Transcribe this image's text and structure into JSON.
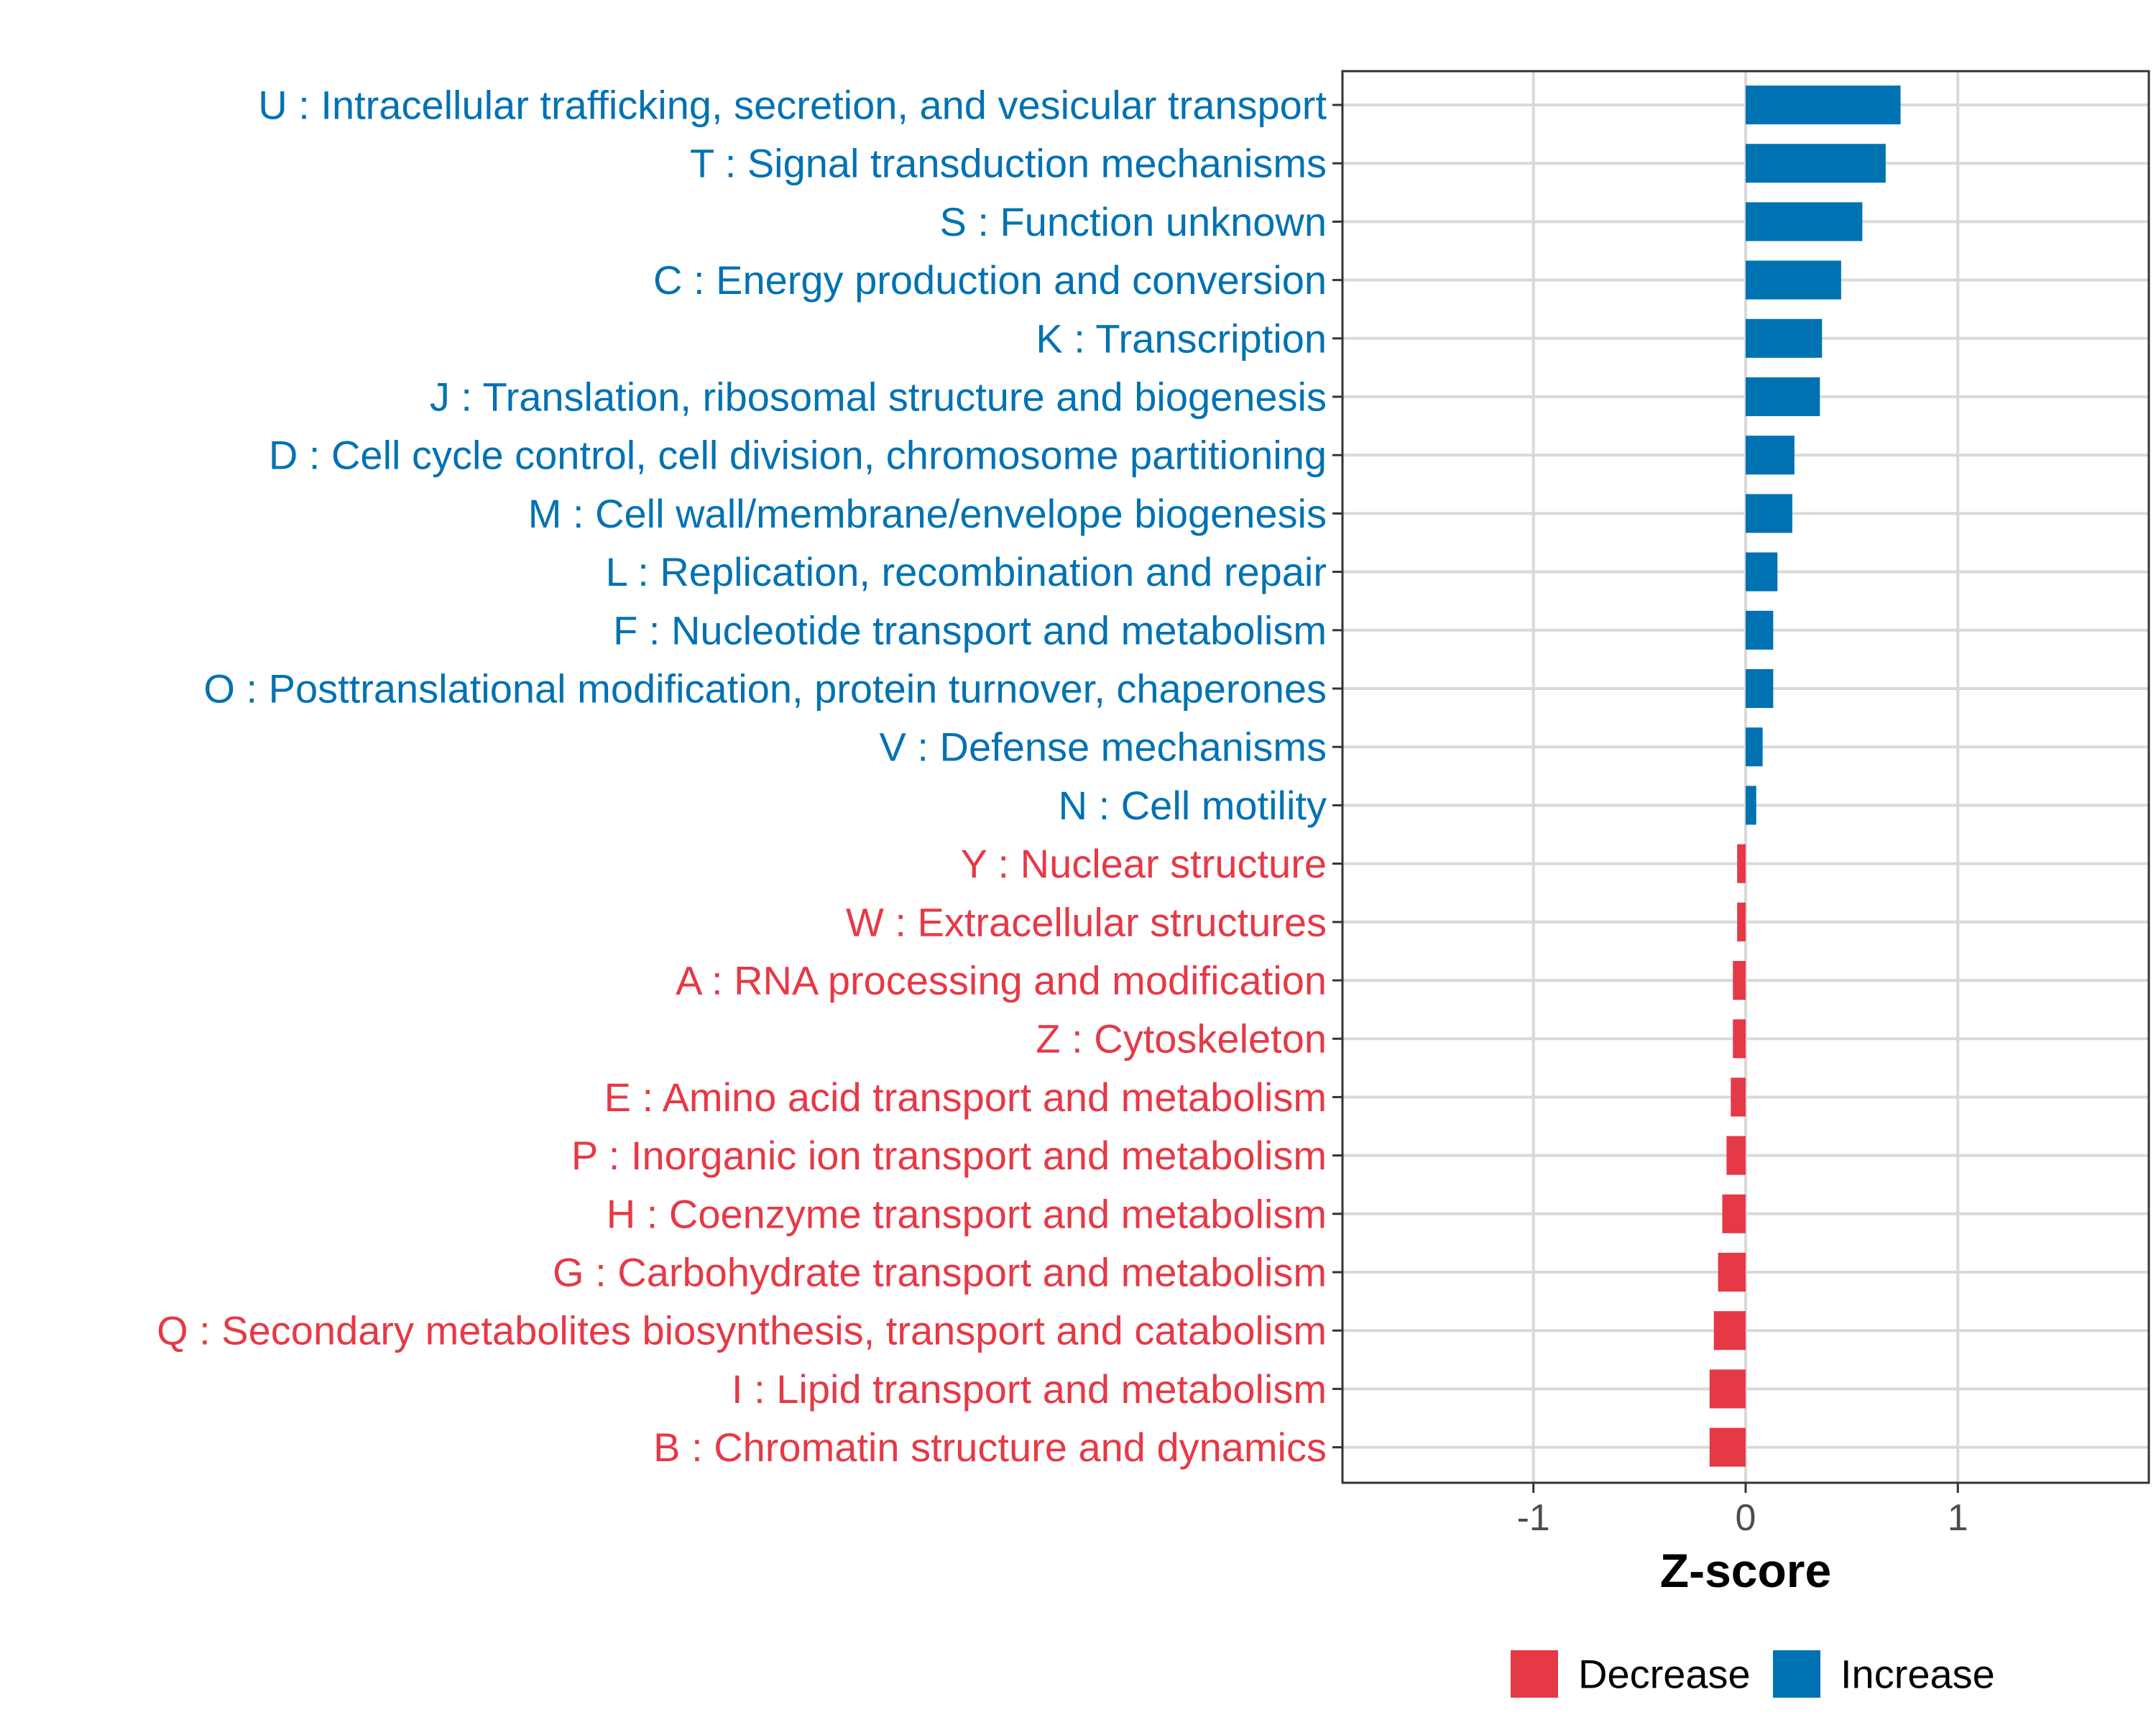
{
  "chart_data": {
    "type": "bar",
    "orientation": "horizontal",
    "title": "",
    "xlabel": "Z-score",
    "ylabel": "",
    "xlim": [
      -1.9,
      1.9
    ],
    "xticks": [
      -1,
      0,
      1
    ],
    "xtick_labels": [
      "-1",
      "0",
      "1"
    ],
    "grid": true,
    "legend_position": "bottom",
    "colors": {
      "Increase": "#0072b2",
      "Decrease": "#e63946",
      "grid": "#d9d9d9"
    },
    "legend": [
      {
        "label": "Decrease",
        "color": "#e63946"
      },
      {
        "label": "Increase",
        "color": "#0072b2"
      }
    ],
    "categories": [
      "U : Intracellular trafficking, secretion, and vesicular transport",
      "T : Signal transduction mechanisms",
      "S : Function unknown",
      "C : Energy production and conversion",
      "K : Transcription",
      "J : Translation, ribosomal structure and biogenesis",
      "D : Cell cycle control, cell division, chromosome partitioning",
      "M : Cell wall/membrane/envelope biogenesis",
      "L : Replication, recombination and repair",
      "F : Nucleotide transport and metabolism",
      "O : Posttranslational modification, protein turnover, chaperones",
      "V : Defense mechanisms",
      "N : Cell motility",
      "Y : Nuclear structure",
      "W : Extracellular structures",
      "A : RNA processing and modification",
      "Z : Cytoskeleton",
      "E : Amino acid transport and metabolism",
      "P : Inorganic ion transport and metabolism",
      "H : Coenzyme transport and metabolism",
      "G : Carbohydrate transport and metabolism",
      "Q : Secondary metabolites biosynthesis, transport and catabolism",
      "I : Lipid transport and metabolism",
      "B : Chromatin structure and dynamics"
    ],
    "values": [
      0.73,
      0.66,
      0.55,
      0.45,
      0.36,
      0.35,
      0.23,
      0.22,
      0.15,
      0.13,
      0.13,
      0.08,
      0.05,
      -0.04,
      -0.04,
      -0.06,
      -0.06,
      -0.07,
      -0.09,
      -0.11,
      -0.13,
      -0.15,
      -0.17,
      -0.17
    ],
    "groups": [
      "Increase",
      "Increase",
      "Increase",
      "Increase",
      "Increase",
      "Increase",
      "Increase",
      "Increase",
      "Increase",
      "Increase",
      "Increase",
      "Increase",
      "Increase",
      "Decrease",
      "Decrease",
      "Decrease",
      "Decrease",
      "Decrease",
      "Decrease",
      "Decrease",
      "Decrease",
      "Decrease",
      "Decrease",
      "Decrease"
    ]
  }
}
